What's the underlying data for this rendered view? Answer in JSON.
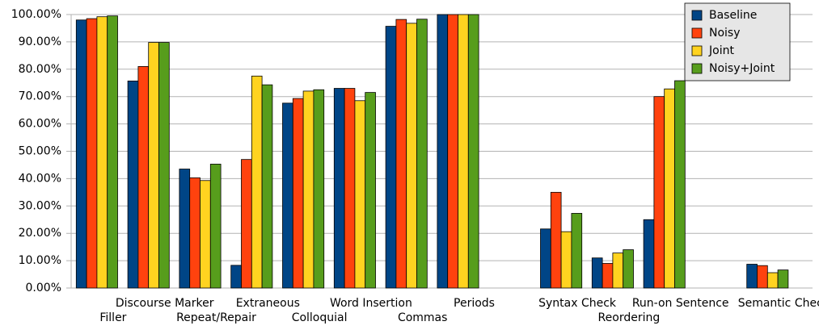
{
  "chart_data": {
    "type": "bar",
    "categories": [
      "Filler",
      "Discourse Marker",
      "Repeat/Repair",
      "Extraneous",
      "Colloquial",
      "Word Insertion",
      "Commas",
      "Periods",
      null,
      "Syntax Check",
      "Reordering",
      "Run-on Sentence",
      null,
      "Semantic Check"
    ],
    "series": [
      {
        "name": "Baseline",
        "color": "#004586",
        "values": [
          98,
          75.7,
          43.5,
          8.3,
          67.6,
          73,
          95.7,
          100,
          null,
          21.6,
          11,
          25,
          null,
          8.7
        ]
      },
      {
        "name": "Noisy",
        "color": "#ff420e",
        "values": [
          98.5,
          81,
          40.3,
          47,
          69.3,
          73,
          98.2,
          100,
          null,
          35,
          9,
          70,
          null,
          8.2
        ]
      },
      {
        "name": "Joint",
        "color": "#ffd320",
        "values": [
          99.2,
          89.8,
          39.3,
          77.5,
          72,
          68.5,
          96.8,
          100,
          null,
          20.6,
          12.8,
          72.8,
          null,
          5.6
        ]
      },
      {
        "name": "Noisy+Joint",
        "color": "#579d1c",
        "values": [
          99.5,
          89.8,
          45.3,
          74.3,
          72.5,
          71.5,
          98.3,
          100,
          null,
          27.3,
          14,
          75.8,
          null,
          6.6
        ]
      }
    ],
    "ylim": [
      0,
      100
    ],
    "yticks": [
      {
        "value": 0,
        "label": "0.00%"
      },
      {
        "value": 10,
        "label": "10.00%"
      },
      {
        "value": 20,
        "label": "20.00%"
      },
      {
        "value": 30,
        "label": "30.00%"
      },
      {
        "value": 40,
        "label": "40.00%"
      },
      {
        "value": 50,
        "label": "50.00%"
      },
      {
        "value": 60,
        "label": "60.00%"
      },
      {
        "value": 70,
        "label": "70.00%"
      },
      {
        "value": 80,
        "label": "80.00%"
      },
      {
        "value": 90,
        "label": "90.00%"
      },
      {
        "value": 100,
        "label": "100.00%"
      }
    ],
    "grid": true,
    "legend": "top-right"
  }
}
